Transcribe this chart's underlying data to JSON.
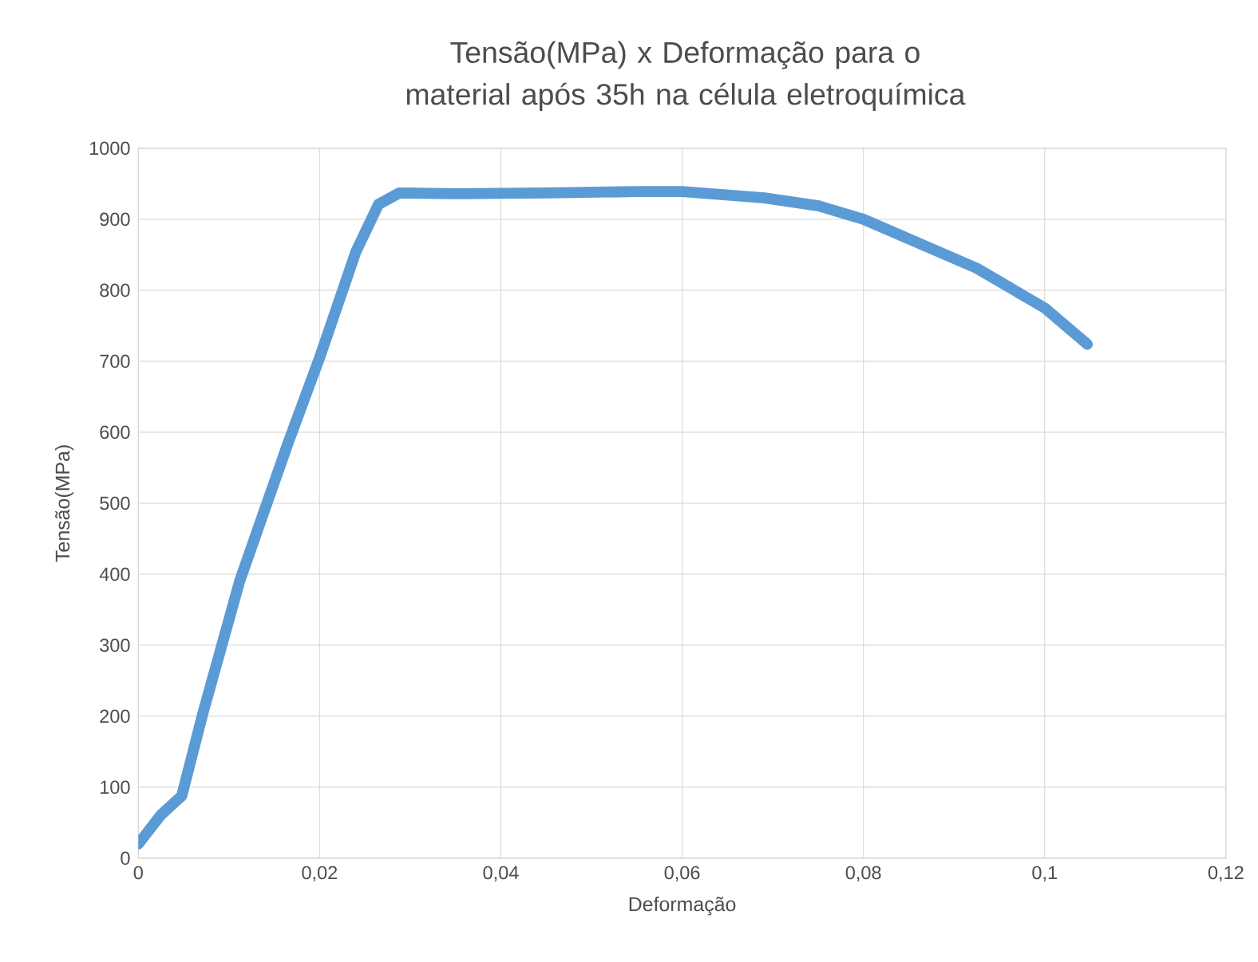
{
  "chart_data": {
    "type": "line",
    "title": "Tensão(MPa) x Deformação para o material após 35h na célula eletroquímica",
    "xlabel": "Deformação",
    "ylabel": "Tensão(MPa)",
    "x": [
      0,
      0.0025,
      0.0048,
      0.0071,
      0.0112,
      0.0165,
      0.02,
      0.024,
      0.0265,
      0.0288,
      0.035,
      0.045,
      0.055,
      0.06,
      0.0691,
      0.075,
      0.08,
      0.0925,
      0.1,
      0.1047
    ],
    "series": [
      {
        "color": "#5b9bd5",
        "values": [
          20,
          61,
          88,
          203,
          391,
          584,
          705,
          854,
          921,
          937,
          936,
          937,
          939,
          939,
          930,
          919,
          900,
          831,
          775,
          724
        ]
      }
    ],
    "xlim": [
      0,
      0.12
    ],
    "xticks": [
      {
        "value": 0,
        "label": "0"
      },
      {
        "value": 0.02,
        "label": "0,02"
      },
      {
        "value": 0.04,
        "label": "0,04"
      },
      {
        "value": 0.06,
        "label": "0,06"
      },
      {
        "value": 0.08,
        "label": "0,08"
      },
      {
        "value": 0.1,
        "label": "0,1"
      },
      {
        "value": 0.12,
        "label": "0,12"
      }
    ],
    "ylim": [
      0,
      1000
    ],
    "yticks": [
      0,
      100,
      200,
      300,
      400,
      500,
      600,
      700,
      800,
      900,
      1000
    ],
    "grid": true,
    "marker": "none",
    "line_style": "solid"
  }
}
